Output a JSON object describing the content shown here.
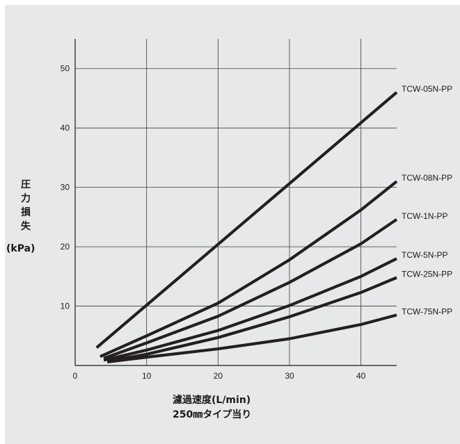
{
  "chart_data": {
    "type": "line",
    "title": "",
    "xlabel": "濾過速度(L/min)",
    "xlabel_sub": "250㎜タイプ当り",
    "ylabel_chars": [
      "圧",
      "力",
      "損",
      "失"
    ],
    "yunit": "(kPa)",
    "xlim": [
      0,
      45
    ],
    "ylim": [
      0,
      55
    ],
    "xticks": [
      0,
      10,
      20,
      30,
      40
    ],
    "yticks": [
      10,
      20,
      30,
      40,
      50
    ],
    "grid": true,
    "series": [
      {
        "name": "TCW-05N-PP",
        "points": [
          [
            3,
            3
          ],
          [
            45,
            46
          ]
        ]
      },
      {
        "name": "TCW-08N-PP",
        "points": [
          [
            3.5,
            1.5
          ],
          [
            10,
            5
          ],
          [
            20,
            10.5
          ],
          [
            30,
            17.8
          ],
          [
            40,
            26.2
          ],
          [
            45,
            31
          ]
        ]
      },
      {
        "name": "TCW-1N-PP",
        "points": [
          [
            4,
            1.2
          ],
          [
            10,
            3.8
          ],
          [
            20,
            8.3
          ],
          [
            30,
            14
          ],
          [
            40,
            20.5
          ],
          [
            45,
            24.6
          ]
        ]
      },
      {
        "name": "TCW-5N-PP",
        "points": [
          [
            4,
            0.9
          ],
          [
            10,
            2.6
          ],
          [
            20,
            5.9
          ],
          [
            30,
            10.1
          ],
          [
            40,
            15
          ],
          [
            45,
            18
          ]
        ]
      },
      {
        "name": "TCW-25N-PP",
        "points": [
          [
            4.5,
            0.7
          ],
          [
            10,
            1.9
          ],
          [
            20,
            4.7
          ],
          [
            30,
            8.2
          ],
          [
            40,
            12.3
          ],
          [
            45,
            14.8
          ]
        ]
      },
      {
        "name": "TCW-75N-PP",
        "points": [
          [
            4.5,
            0.6
          ],
          [
            10,
            1.4
          ],
          [
            20,
            2.8
          ],
          [
            30,
            4.5
          ],
          [
            40,
            6.9
          ],
          [
            45,
            8.5
          ]
        ]
      }
    ],
    "line_color": "#231f20",
    "grid_color": "#3a3a3a",
    "background": "#e7e8e9"
  }
}
